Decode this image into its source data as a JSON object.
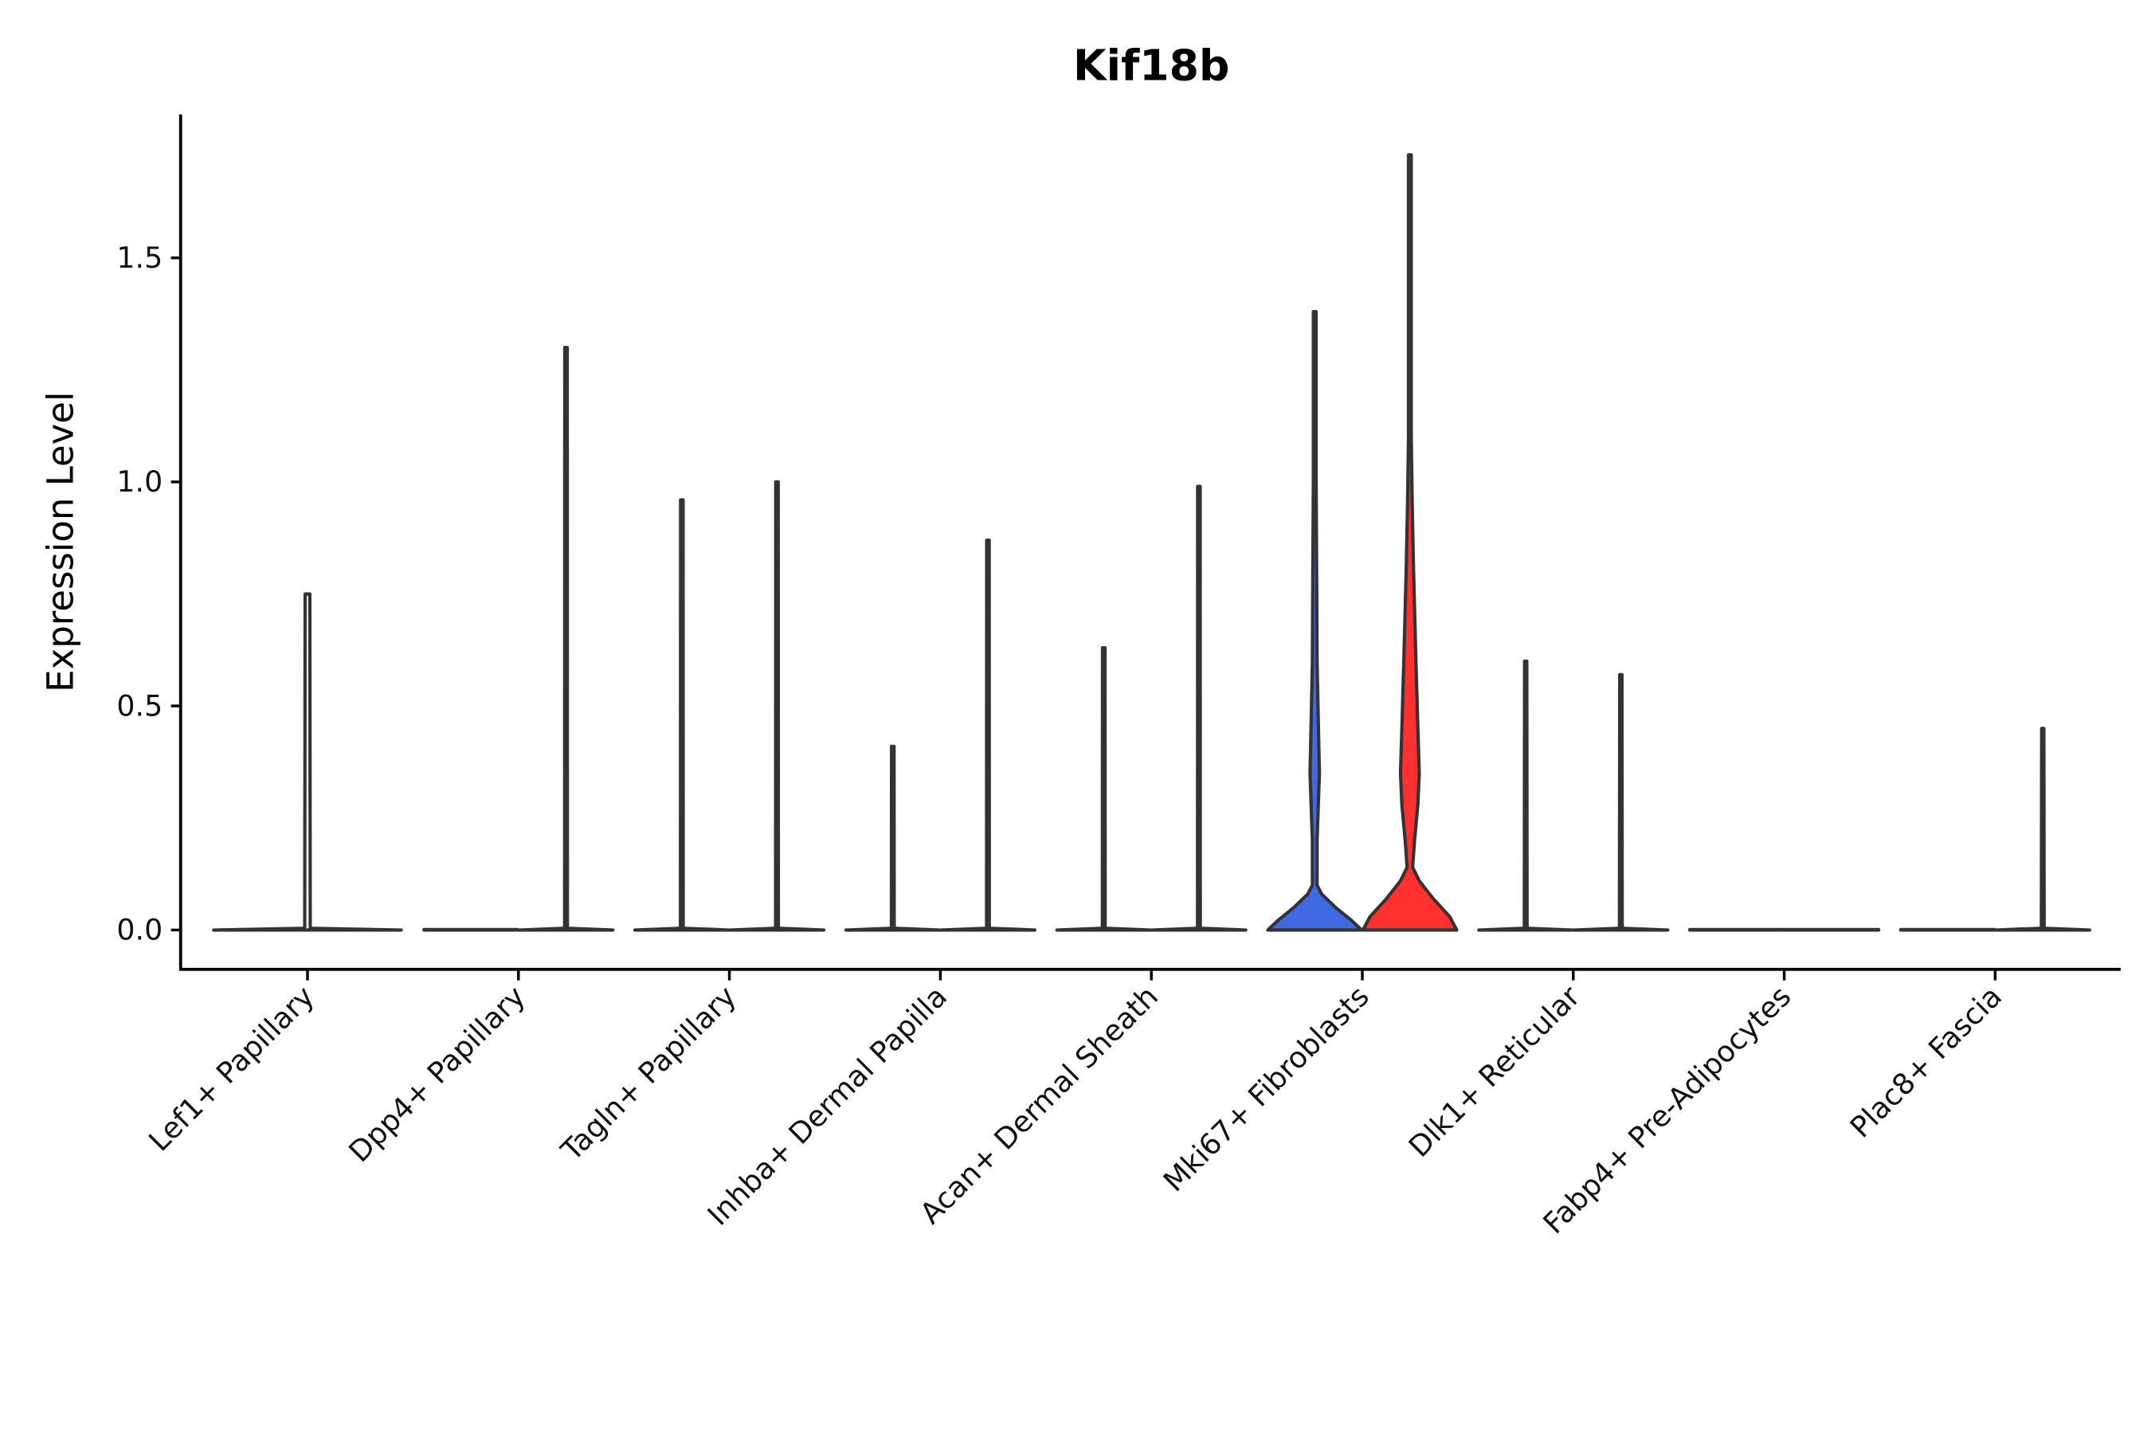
{
  "chart_data": {
    "type": "violin",
    "title": "Kif18b",
    "xlabel": "",
    "ylabel": "Expression Level",
    "ylim": [
      -0.09,
      1.82
    ],
    "yticks": [
      "0.0",
      "0.5",
      "1.0",
      "1.5"
    ],
    "ytick_values": [
      0,
      0.5,
      1.0,
      1.5
    ],
    "grid": false,
    "categories": [
      "Lef1+ Papillary",
      "Dpp4+ Papillary",
      "Tagln+ Papillary",
      "Inhba+ Dermal Papilla",
      "Acan+ Dermal Sheath",
      "Mki67+ Fibroblasts",
      "Dlk1+ Reticular",
      "Fabp4+ Pre-Adipocytes",
      "Plac8+ Fascia"
    ],
    "colors": {
      "group1": "#4169E1",
      "group2": "#FF3030",
      "default": "#ffffff",
      "outline": "#333333"
    },
    "violins": [
      {
        "category": 0,
        "slot": "center",
        "max": 0.75,
        "fill": "default"
      },
      {
        "category": 1,
        "slot": "left",
        "max": 0,
        "fill": "default"
      },
      {
        "category": 1,
        "slot": "right",
        "max": 1.3,
        "fill": "default"
      },
      {
        "category": 2,
        "slot": "left",
        "max": 0.96,
        "fill": "default"
      },
      {
        "category": 2,
        "slot": "right",
        "max": 1.0,
        "fill": "default"
      },
      {
        "category": 3,
        "slot": "left",
        "max": 0.41,
        "fill": "default"
      },
      {
        "category": 3,
        "slot": "right",
        "max": 0.87,
        "fill": "default"
      },
      {
        "category": 4,
        "slot": "left",
        "max": 0.63,
        "fill": "default"
      },
      {
        "category": 4,
        "slot": "right",
        "max": 0.99,
        "fill": "default"
      },
      {
        "category": 5,
        "slot": "left",
        "max": 1.38,
        "fill": "group1",
        "density": [
          [
            0,
            1
          ],
          [
            0.02,
            0.8
          ],
          [
            0.05,
            0.45
          ],
          [
            0.08,
            0.15
          ],
          [
            0.1,
            0.05
          ],
          [
            0.2,
            0.05
          ],
          [
            0.35,
            0.1
          ],
          [
            0.45,
            0.08
          ],
          [
            0.6,
            0.05
          ],
          [
            0.8,
            0.04
          ],
          [
            1.0,
            0.03
          ],
          [
            1.38,
            0.03
          ]
        ]
      },
      {
        "category": 5,
        "slot": "right",
        "max": 1.73,
        "fill": "group2",
        "density": [
          [
            0,
            1
          ],
          [
            0.03,
            0.85
          ],
          [
            0.07,
            0.5
          ],
          [
            0.11,
            0.2
          ],
          [
            0.14,
            0.06
          ],
          [
            0.2,
            0.1
          ],
          [
            0.28,
            0.17
          ],
          [
            0.35,
            0.2
          ],
          [
            0.45,
            0.17
          ],
          [
            0.6,
            0.13
          ],
          [
            0.8,
            0.08
          ],
          [
            0.95,
            0.05
          ],
          [
            1.1,
            0.03
          ],
          [
            1.73,
            0.03
          ]
        ]
      },
      {
        "category": 6,
        "slot": "left",
        "max": 0.6,
        "fill": "default"
      },
      {
        "category": 6,
        "slot": "right",
        "max": 0.57,
        "fill": "default"
      },
      {
        "category": 7,
        "slot": "left",
        "max": 0,
        "fill": "default"
      },
      {
        "category": 7,
        "slot": "right",
        "max": 0,
        "fill": "default"
      },
      {
        "category": 8,
        "slot": "left",
        "max": 0,
        "fill": "default"
      },
      {
        "category": 8,
        "slot": "right",
        "max": 0.45,
        "fill": "default"
      }
    ]
  }
}
